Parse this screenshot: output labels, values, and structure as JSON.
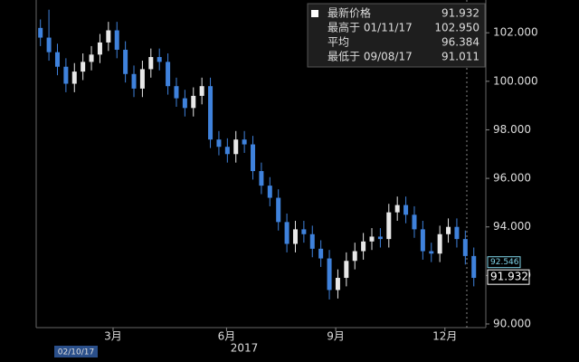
{
  "chart_data": {
    "type": "candlestick",
    "legend": [
      {
        "label": "最新价格",
        "value": "91.932"
      },
      {
        "label": "最高于 01/11/17",
        "value": "102.950"
      },
      {
        "label": "平均",
        "value": "96.384"
      },
      {
        "label": "最低于 09/08/17",
        "value": "91.011"
      }
    ],
    "year_label": "2017",
    "start_date": "02/10/17",
    "up_color": "#e8e8e8",
    "down_color": "#3f82dc",
    "xlim": [
      -0.5,
      52.2
    ],
    "xticks": [
      {
        "value": 8.55,
        "label": "3月"
      },
      {
        "value": 21.9,
        "label": "6月"
      },
      {
        "value": 34.75,
        "label": "9月"
      },
      {
        "value": 47.6,
        "label": "12月"
      }
    ],
    "ylim": [
      89.85,
      103.35
    ],
    "yticks": [
      {
        "value": 90,
        "label": "90.000"
      },
      {
        "value": 92,
        "label": "92.000"
      },
      {
        "value": 94,
        "label": "94.000"
      },
      {
        "value": 96,
        "label": "96.000"
      },
      {
        "value": 98,
        "label": "98.000"
      },
      {
        "value": 100,
        "label": "100.000"
      },
      {
        "value": 102,
        "label": "102.000"
      }
    ],
    "price_tags": [
      {
        "value": 92.546,
        "label": "92.546",
        "color": "#7fd3e8"
      },
      {
        "value": 91.932,
        "label": "91.932",
        "color": "#ffffff"
      }
    ],
    "open": [
      102.2,
      101.8,
      101.2,
      100.6,
      99.9,
      100.4,
      100.8,
      101.1,
      101.6,
      102.1,
      101.3,
      100.3,
      99.7,
      100.5,
      101.0,
      100.8,
      99.8,
      99.3,
      98.9,
      99.4,
      99.8,
      97.6,
      97.3,
      97.0,
      97.6,
      97.4,
      96.3,
      95.7,
      95.2,
      94.2,
      93.3,
      93.9,
      93.7,
      93.1,
      92.7,
      91.4,
      91.9,
      92.6,
      93.0,
      93.4,
      93.6,
      93.5,
      94.6,
      94.9,
      94.5,
      93.9,
      93.0,
      92.9,
      93.7,
      94.0,
      93.5,
      92.8
    ],
    "high": [
      102.55,
      102.95,
      101.55,
      100.95,
      100.75,
      101.15,
      101.45,
      101.95,
      102.45,
      102.45,
      101.65,
      100.65,
      100.85,
      101.35,
      101.35,
      101.15,
      100.15,
      99.65,
      99.75,
      100.15,
      100.15,
      97.95,
      97.65,
      97.95,
      97.95,
      97.75,
      96.65,
      96.05,
      95.55,
      94.55,
      94.25,
      94.25,
      94.05,
      93.45,
      93.05,
      92.25,
      92.95,
      93.35,
      93.75,
      93.95,
      93.95,
      94.95,
      95.25,
      95.25,
      94.85,
      94.25,
      93.35,
      94.05,
      94.35,
      94.35,
      93.85,
      93.15
    ],
    "low": [
      101.45,
      100.85,
      100.25,
      99.55,
      99.55,
      100.05,
      100.45,
      100.75,
      101.25,
      100.95,
      99.95,
      99.35,
      99.35,
      100.15,
      100.45,
      99.45,
      98.95,
      98.55,
      98.55,
      99.05,
      97.25,
      96.95,
      96.65,
      96.65,
      97.05,
      95.95,
      95.35,
      94.85,
      93.85,
      92.95,
      92.95,
      93.35,
      92.75,
      92.35,
      91.01,
      91.05,
      91.55,
      92.25,
      92.65,
      93.05,
      93.15,
      93.15,
      94.25,
      94.15,
      93.55,
      92.65,
      92.55,
      92.55,
      93.35,
      93.15,
      92.45,
      91.55
    ],
    "close": [
      101.8,
      101.2,
      100.6,
      99.9,
      100.4,
      100.8,
      101.1,
      101.6,
      102.1,
      101.3,
      100.3,
      99.7,
      100.5,
      101.0,
      100.8,
      99.8,
      99.3,
      98.9,
      99.4,
      99.8,
      97.6,
      97.3,
      97.0,
      97.6,
      97.4,
      96.3,
      95.7,
      95.2,
      94.2,
      93.3,
      93.9,
      93.7,
      93.1,
      92.7,
      91.4,
      91.9,
      92.6,
      93.0,
      93.4,
      93.6,
      93.5,
      94.6,
      94.9,
      94.5,
      93.9,
      93.0,
      92.9,
      93.7,
      94.0,
      93.5,
      92.8,
      91.9
    ]
  }
}
